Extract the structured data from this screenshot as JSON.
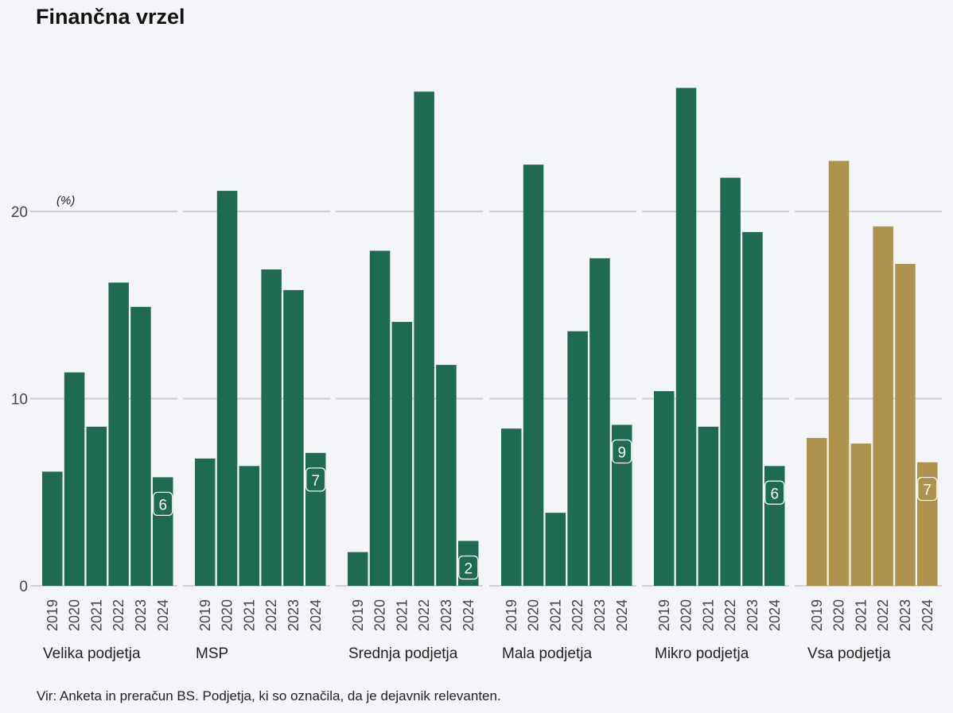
{
  "title": "Finančna vrzel",
  "source": "Vir: Anketa in preračun BS. Podjetja, ki so označila, da je dejavnik relevanten.",
  "colors": {
    "bar": "#1e6b52",
    "highlight_bar": "#b0924f",
    "gridline": "#cdd0d5",
    "axis_text": "#444444",
    "background": "#f3f5f9"
  },
  "chart_data": {
    "type": "bar",
    "title": "Finančna vrzel",
    "unit_label": "(%)",
    "ylim": [
      0,
      27
    ],
    "yticks": [
      0,
      10,
      20
    ],
    "grid": true,
    "categories": [
      "2019",
      "2020",
      "2021",
      "2022",
      "2023",
      "2024"
    ],
    "panels": [
      {
        "name": "Velika podjetja",
        "values": [
          6.1,
          11.4,
          8.5,
          16.2,
          14.9,
          5.8
        ],
        "last_label": "6",
        "highlight": false
      },
      {
        "name": "MSP",
        "values": [
          6.8,
          21.1,
          6.4,
          16.9,
          15.8,
          7.1
        ],
        "last_label": "7",
        "highlight": false
      },
      {
        "name": "Srednja podjetja",
        "values": [
          1.8,
          17.9,
          14.1,
          26.4,
          11.8,
          2.4
        ],
        "last_label": "2",
        "highlight": false
      },
      {
        "name": "Mala podjetja",
        "values": [
          8.4,
          22.5,
          3.9,
          13.6,
          17.5,
          8.6
        ],
        "last_label": "9",
        "highlight": false
      },
      {
        "name": "Mikro podjetja",
        "values": [
          10.4,
          26.6,
          8.5,
          21.8,
          18.9,
          6.4
        ],
        "last_label": "6",
        "highlight": false
      },
      {
        "name": "Vsa podjetja",
        "values": [
          7.9,
          22.7,
          7.6,
          19.2,
          17.2,
          6.6
        ],
        "last_label": "7",
        "highlight": true
      }
    ]
  }
}
